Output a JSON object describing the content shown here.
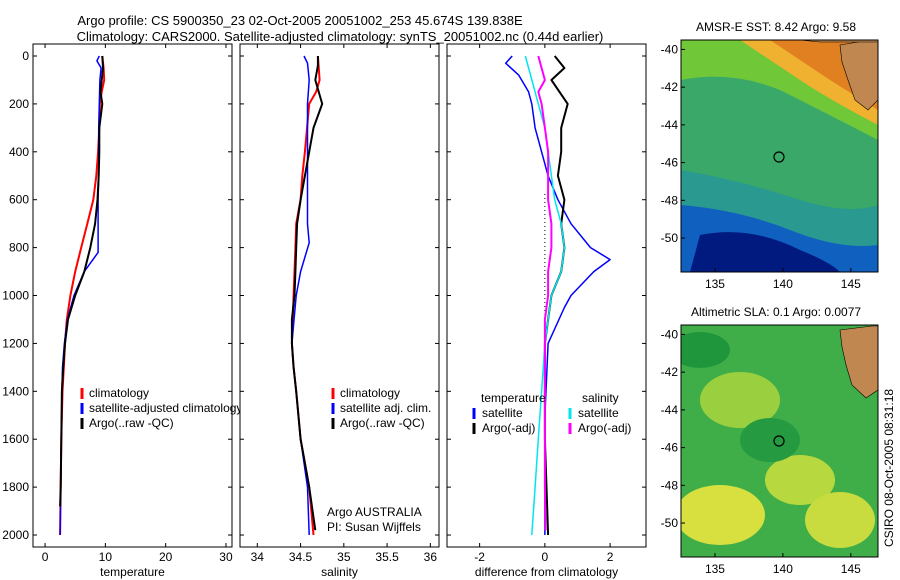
{
  "title_line1": "Argo profile: CS 5900350_23 02-Oct-2005 20051002_253 45.674S 139.838E",
  "title_line2": "Climatology: CARS2000. Satellite-adjusted climatology: synTS_20051002.nc (0.44d earlier)",
  "side_label": "CSIRO 08-Oct-2005 08:31:18",
  "colors": {
    "climatology": "#ff0000",
    "satellite": "#0000ff",
    "argo": "#000000",
    "sal_satellite": "#00e5ee",
    "sal_argo": "#ff00ff"
  },
  "chart_data": [
    {
      "type": "line",
      "id": "temperature",
      "xlabel": "temperature",
      "ylabel": "",
      "xlim": [
        -2,
        31
      ],
      "ylim": [
        2050,
        0
      ],
      "y_reversed": true,
      "xticks": [
        0,
        10,
        20,
        30
      ],
      "yticks": [
        0,
        200,
        400,
        600,
        800,
        1000,
        1200,
        1400,
        1600,
        1800,
        2000
      ],
      "legend": {
        "placement": "lower-middle",
        "entries": [
          "climatology",
          "satellite-adjusted climatology",
          "Argo(..raw -QC)"
        ]
      },
      "series": [
        {
          "name": "climatology",
          "color": "#ff0000",
          "width": 2,
          "points": [
            [
              9.5,
              0
            ],
            [
              9.7,
              50
            ],
            [
              9.8,
              100
            ],
            [
              9.4,
              150
            ],
            [
              9.1,
              200
            ],
            [
              9.0,
              300
            ],
            [
              8.8,
              400
            ],
            [
              8.5,
              500
            ],
            [
              8.0,
              600
            ],
            [
              7.0,
              700
            ],
            [
              6.0,
              800
            ],
            [
              5.0,
              900
            ],
            [
              4.2,
              1000
            ],
            [
              3.6,
              1100
            ],
            [
              3.3,
              1200
            ],
            [
              3.1,
              1300
            ],
            [
              2.9,
              1400
            ],
            [
              2.7,
              1600
            ],
            [
              2.6,
              1800
            ],
            [
              2.5,
              2000
            ]
          ]
        },
        {
          "name": "satellite-adjusted climatology",
          "color": "#0000ff",
          "width": 1.5,
          "points": [
            [
              9.0,
              0
            ],
            [
              8.6,
              20
            ],
            [
              9.3,
              50
            ],
            [
              9.1,
              100
            ],
            [
              9.0,
              200
            ],
            [
              8.9,
              300
            ],
            [
              8.9,
              400
            ],
            [
              8.9,
              500
            ],
            [
              8.8,
              600
            ],
            [
              8.8,
              700
            ],
            [
              8.8,
              820
            ],
            [
              6.5,
              900
            ],
            [
              4.8,
              1000
            ],
            [
              3.7,
              1100
            ],
            [
              3.2,
              1200
            ],
            [
              2.9,
              1300
            ],
            [
              2.8,
              1400
            ],
            [
              2.7,
              1600
            ],
            [
              2.6,
              1800
            ],
            [
              2.5,
              2000
            ]
          ]
        },
        {
          "name": "Argo(..raw -QC)",
          "color": "#000000",
          "width": 2,
          "points": [
            [
              9.5,
              0
            ],
            [
              9.6,
              50
            ],
            [
              9.4,
              100
            ],
            [
              9.2,
              150
            ],
            [
              9.5,
              200
            ],
            [
              9.0,
              300
            ],
            [
              9.0,
              400
            ],
            [
              8.9,
              500
            ],
            [
              8.7,
              600
            ],
            [
              8.3,
              700
            ],
            [
              7.5,
              800
            ],
            [
              6.5,
              900
            ],
            [
              5.0,
              1000
            ],
            [
              3.8,
              1100
            ],
            [
              3.3,
              1200
            ],
            [
              3.0,
              1300
            ],
            [
              2.8,
              1400
            ],
            [
              2.7,
              1600
            ],
            [
              2.6,
              1800
            ],
            [
              2.5,
              1880
            ]
          ]
        }
      ]
    },
    {
      "type": "line",
      "id": "salinity",
      "xlabel": "salinity",
      "xlim": [
        33.8,
        36.1
      ],
      "ylim": [
        2050,
        0
      ],
      "y_reversed": true,
      "xticks": [
        34,
        34.5,
        35,
        35.5,
        36
      ],
      "yticks": [
        0,
        200,
        400,
        600,
        800,
        1000,
        1200,
        1400,
        1600,
        1800,
        2000
      ],
      "legend": {
        "placement": "lower-middle",
        "entries": [
          "climatology",
          "satellite adj. clim.",
          "Argo(..raw -QC)"
        ]
      },
      "annotations": [
        "Argo AUSTRALIA",
        "PI: Susan Wijffels"
      ],
      "series": [
        {
          "name": "climatology",
          "color": "#ff0000",
          "width": 2,
          "points": [
            [
              34.7,
              0
            ],
            [
              34.72,
              100
            ],
            [
              34.68,
              150
            ],
            [
              34.6,
              200
            ],
            [
              34.55,
              400
            ],
            [
              34.52,
              500
            ],
            [
              34.5,
              600
            ],
            [
              34.45,
              700
            ],
            [
              34.44,
              800
            ],
            [
              34.43,
              900
            ],
            [
              34.42,
              1000
            ],
            [
              34.4,
              1200
            ],
            [
              34.42,
              1300
            ],
            [
              34.45,
              1400
            ],
            [
              34.5,
              1600
            ],
            [
              34.6,
              1800
            ],
            [
              34.65,
              2000
            ]
          ]
        },
        {
          "name": "satellite adj. clim.",
          "color": "#0000ff",
          "width": 1.5,
          "points": [
            [
              34.54,
              0
            ],
            [
              34.58,
              30
            ],
            [
              34.6,
              100
            ],
            [
              34.58,
              200
            ],
            [
              34.58,
              400
            ],
            [
              34.58,
              600
            ],
            [
              34.58,
              700
            ],
            [
              34.6,
              780
            ],
            [
              34.5,
              900
            ],
            [
              34.45,
              1000
            ],
            [
              34.4,
              1200
            ],
            [
              34.42,
              1300
            ],
            [
              34.45,
              1400
            ],
            [
              34.5,
              1600
            ],
            [
              34.58,
              1800
            ],
            [
              34.6,
              2000
            ]
          ]
        },
        {
          "name": "Argo(..raw -QC)",
          "color": "#000000",
          "width": 2,
          "points": [
            [
              34.7,
              0
            ],
            [
              34.7,
              40
            ],
            [
              34.67,
              100
            ],
            [
              34.75,
              200
            ],
            [
              34.65,
              300
            ],
            [
              34.6,
              400
            ],
            [
              34.55,
              500
            ],
            [
              34.5,
              600
            ],
            [
              34.46,
              700
            ],
            [
              34.45,
              800
            ],
            [
              34.44,
              900
            ],
            [
              34.43,
              1000
            ],
            [
              34.4,
              1100
            ],
            [
              34.4,
              1200
            ],
            [
              34.42,
              1300
            ],
            [
              34.45,
              1400
            ],
            [
              34.5,
              1600
            ],
            [
              34.6,
              1800
            ],
            [
              34.67,
              1980
            ]
          ]
        }
      ]
    },
    {
      "type": "line",
      "id": "difference",
      "xlabel": "difference from climatology",
      "xlim": [
        -3,
        3.1
      ],
      "ylim": [
        2050,
        0
      ],
      "y_reversed": true,
      "xticks": [
        -2,
        0,
        2
      ],
      "yticks": [
        0,
        200,
        400,
        600,
        800,
        1000,
        1200,
        1400,
        1600,
        1800,
        2000
      ],
      "legend": {
        "placement": "lower-middle",
        "columns": [
          {
            "header": "temperature",
            "entries": [
              "satellite",
              "Argo(-adj)"
            ]
          },
          {
            "header": "salinity",
            "entries": [
              "satellite",
              "Argo(-adj)"
            ]
          }
        ]
      },
      "series": [
        {
          "name": "temperature satellite",
          "color": "#0000ff",
          "width": 1.5,
          "points": [
            [
              -1.0,
              0
            ],
            [
              -1.2,
              30
            ],
            [
              -0.8,
              80
            ],
            [
              -0.5,
              150
            ],
            [
              -0.4,
              200
            ],
            [
              -0.3,
              300
            ],
            [
              -0.1,
              400
            ],
            [
              0.1,
              500
            ],
            [
              0.4,
              600
            ],
            [
              0.8,
              700
            ],
            [
              1.4,
              800
            ],
            [
              2.0,
              850
            ],
            [
              1.5,
              900
            ],
            [
              0.8,
              1000
            ],
            [
              0.6,
              1050
            ],
            [
              0.1,
              1200
            ],
            [
              0.0,
              1500
            ],
            [
              0.0,
              2000
            ]
          ]
        },
        {
          "name": "temperature Argo(-adj)",
          "color": "#000000",
          "width": 2,
          "points": [
            [
              0.3,
              0
            ],
            [
              0.6,
              50
            ],
            [
              0.2,
              100
            ],
            [
              0.7,
              200
            ],
            [
              0.5,
              300
            ],
            [
              0.5,
              400
            ],
            [
              0.4,
              500
            ],
            [
              0.6,
              600
            ],
            [
              0.5,
              700
            ],
            [
              0.6,
              800
            ],
            [
              0.5,
              900
            ],
            [
              0.2,
              1000
            ],
            [
              0.1,
              1100
            ],
            [
              0.0,
              1200
            ],
            [
              0.0,
              1400
            ],
            [
              0.0,
              1600
            ],
            [
              0.05,
              1800
            ],
            [
              0.1,
              2000
            ]
          ]
        },
        {
          "name": "salinity satellite",
          "color": "#00e5ee",
          "width": 1.5,
          "points": [
            [
              -0.6,
              0
            ],
            [
              -0.5,
              50
            ],
            [
              -0.3,
              150
            ],
            [
              -0.2,
              200
            ],
            [
              0.0,
              300
            ],
            [
              0.2,
              500
            ],
            [
              0.3,
              600
            ],
            [
              0.5,
              700
            ],
            [
              0.6,
              800
            ],
            [
              0.5,
              900
            ],
            [
              0.2,
              1000
            ],
            [
              0.1,
              1100
            ],
            [
              0.0,
              1200
            ],
            [
              -0.1,
              1400
            ],
            [
              -0.2,
              1600
            ],
            [
              -0.3,
              1800
            ],
            [
              -0.4,
              2000
            ]
          ]
        },
        {
          "name": "salinity Argo(-adj)",
          "color": "#ff00ff",
          "width": 2,
          "points": [
            [
              -0.2,
              0
            ],
            [
              -0.1,
              50
            ],
            [
              0.0,
              100
            ],
            [
              -0.2,
              150
            ],
            [
              -0.1,
              200
            ],
            [
              0.0,
              300
            ],
            [
              0.1,
              400
            ],
            [
              0.1,
              500
            ],
            [
              0.1,
              600
            ],
            [
              0.2,
              700
            ],
            [
              0.2,
              800
            ],
            [
              0.1,
              900
            ],
            [
              0.1,
              1000
            ],
            [
              0.0,
              1100
            ],
            [
              0.0,
              1200
            ],
            [
              0.0,
              1400
            ],
            [
              0.0,
              1600
            ],
            [
              0.0,
              1800
            ],
            [
              0.02,
              1980
            ]
          ]
        }
      ]
    },
    {
      "type": "heatmap",
      "id": "sst_map",
      "title": "AMSR-E SST: 8.42 Argo: 9.58",
      "xlim": [
        132.5,
        147
      ],
      "ylim": [
        -51.8,
        -39.5
      ],
      "xticks": [
        135,
        140,
        145
      ],
      "yticks": [
        -40,
        -42,
        -44,
        -46,
        -48,
        -50
      ],
      "marker": {
        "lon": 139.838,
        "lat": -45.674
      },
      "values": [
        8.42,
        9.58
      ],
      "colors": {
        "land": "#c08850",
        "warm": "#e07020",
        "mid": "#50c040",
        "cool": "#30a090",
        "cold": "#0050b0",
        "coldest": "#001a80"
      }
    },
    {
      "type": "heatmap",
      "id": "sla_map",
      "title": "Altimetric SLA: 0.1 Argo: 0.0077",
      "xlim": [
        132.5,
        147
      ],
      "ylim": [
        -51.8,
        -39.5
      ],
      "xticks": [
        135,
        140,
        145
      ],
      "yticks": [
        -40,
        -42,
        -44,
        -46,
        -48,
        -50
      ],
      "marker": {
        "lon": 139.838,
        "lat": -45.674
      },
      "values": [
        0.1,
        0.0077
      ],
      "colors": {
        "land": "#c08850",
        "base": "#40b040",
        "low": "#20a040",
        "high": "#d8e040"
      }
    }
  ]
}
